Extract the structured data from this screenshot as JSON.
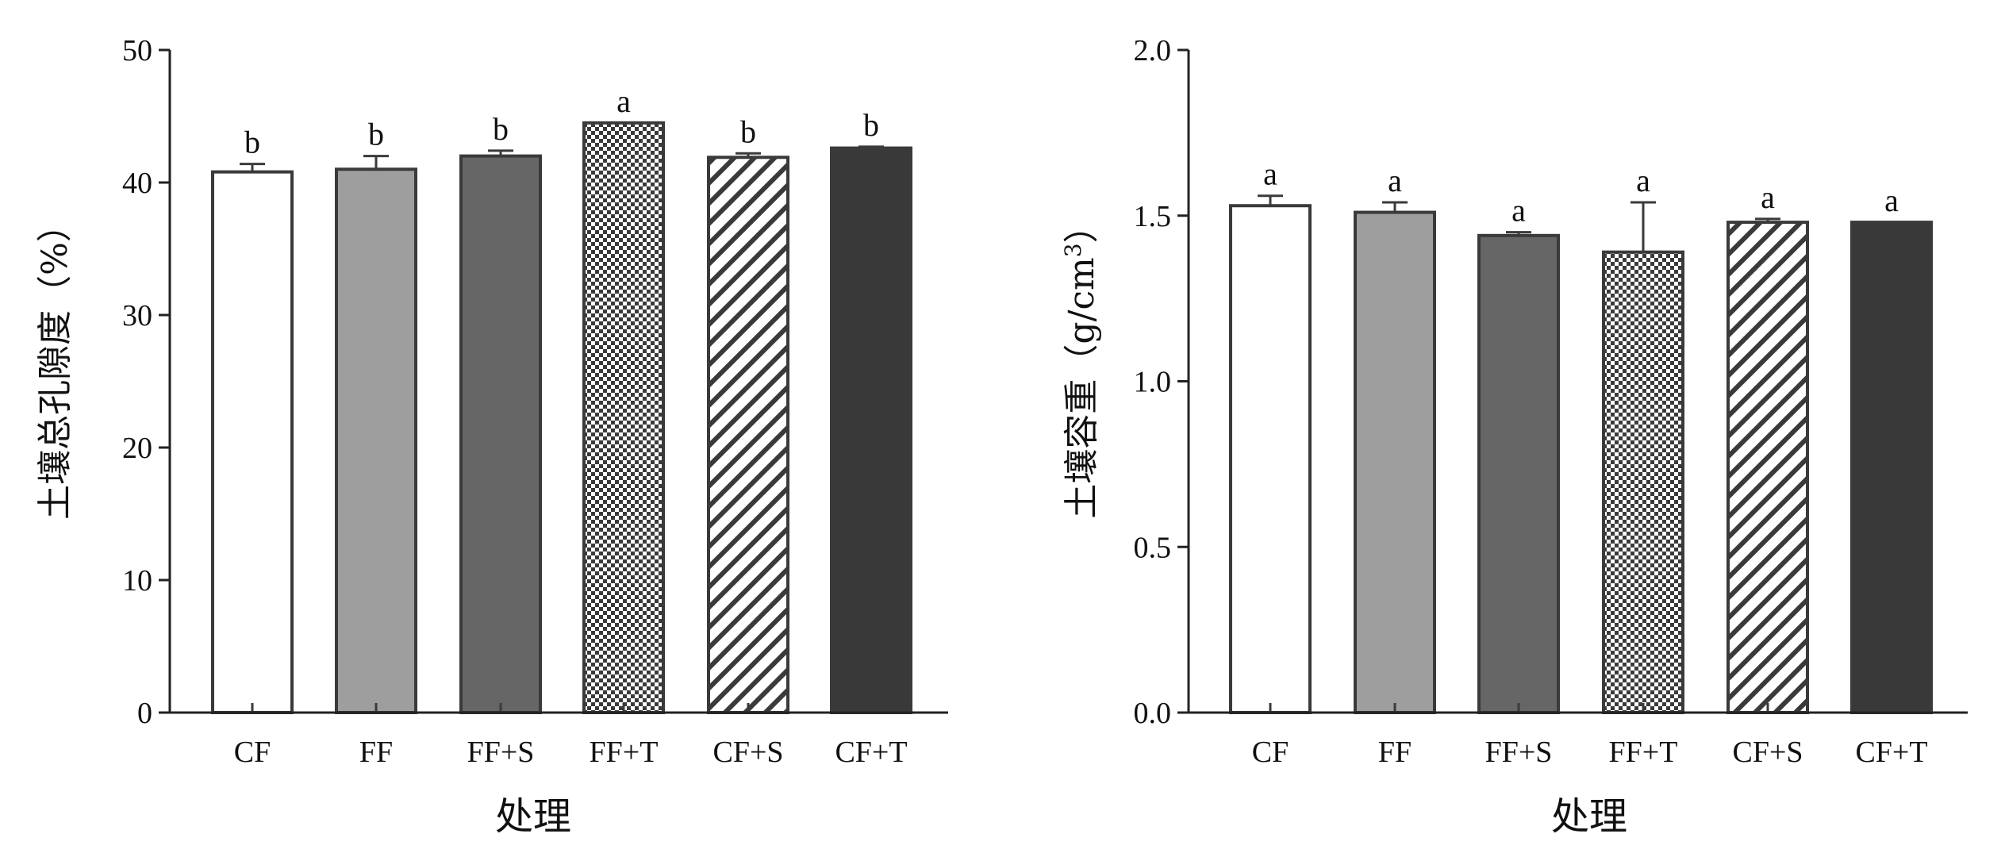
{
  "chart_data": [
    {
      "type": "bar",
      "categories": [
        "CF",
        "FF",
        "FF+S",
        "FF+T",
        "CF+S",
        "CF+T"
      ],
      "values": [
        40.8,
        41.0,
        42.0,
        44.5,
        41.9,
        42.6
      ],
      "errors": [
        0.6,
        1.0,
        0.4,
        0.0,
        0.3,
        0.1
      ],
      "significance": [
        "b",
        "b",
        "b",
        "a",
        "b",
        "b"
      ],
      "patterns": [
        "white",
        "light-gray",
        "dark-gray",
        "checker",
        "diagonal-hatch",
        "black"
      ],
      "ylabel": "土壤总孔隙度（%）",
      "xlabel": "处理",
      "ylim": [
        0,
        50
      ],
      "yticks": [
        "0",
        "10",
        "20",
        "30",
        "40",
        "50"
      ],
      "grid": false
    },
    {
      "type": "bar",
      "categories": [
        "CF",
        "FF",
        "FF+S",
        "FF+T",
        "CF+S",
        "CF+T"
      ],
      "values": [
        1.53,
        1.51,
        1.44,
        1.39,
        1.48,
        1.48
      ],
      "errors": [
        0.03,
        0.03,
        0.01,
        0.15,
        0.01,
        0.0
      ],
      "significance": [
        "a",
        "a",
        "a",
        "a",
        "a",
        "a"
      ],
      "patterns": [
        "white",
        "light-gray",
        "dark-gray",
        "checker",
        "diagonal-hatch",
        "black"
      ],
      "ylabel_main": "土壤容重（g/cm",
      "ylabel_sup": "3",
      "ylabel_close": "）",
      "xlabel": "处理",
      "ylim": [
        0,
        2.0
      ],
      "yticks": [
        "0.0",
        "0.5",
        "1.0",
        "1.5",
        "2.0"
      ],
      "grid": false
    }
  ],
  "colors": {
    "white": "#ffffff",
    "light-gray": "#9e9e9e",
    "dark-gray": "#666666",
    "black": "#393939",
    "outline": "#3a3a3a"
  }
}
